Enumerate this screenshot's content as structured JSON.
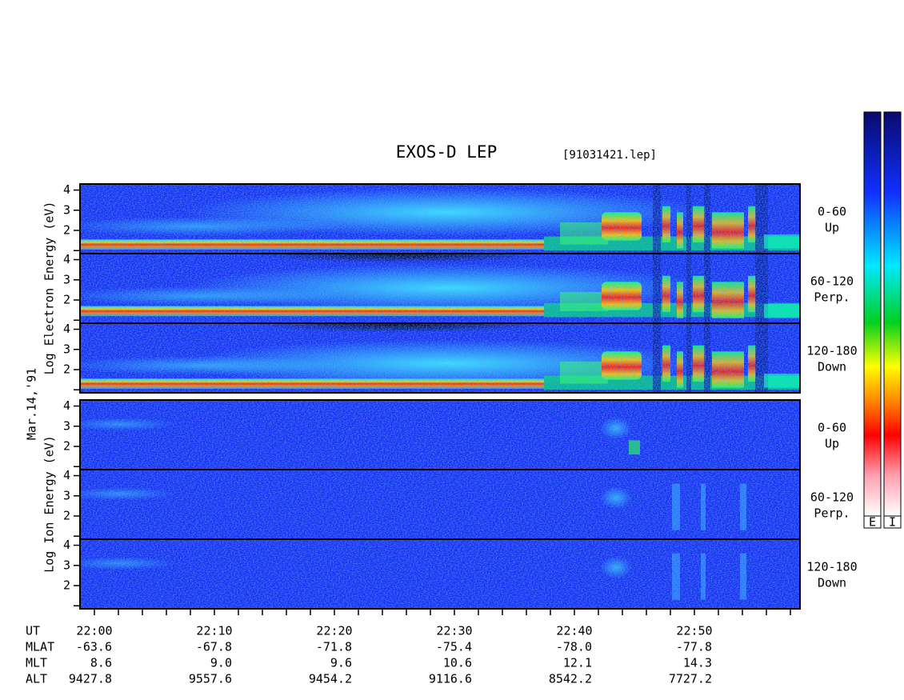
{
  "chart_data": {
    "type": "spectrogram",
    "title": "EXOS-D LEP",
    "subtitle": "[91031421.lep]",
    "date": "Mar.14,'91",
    "groups": [
      {
        "label": "Log  Electron  Energy (eV)",
        "species": "electron"
      },
      {
        "label": "Log  Ion  Energy (eV)",
        "species": "ion"
      }
    ],
    "pitch": [
      {
        "range": "0-60",
        "dir": "Up"
      },
      {
        "range": "60-120",
        "dir": "Perp."
      },
      {
        "range": "120-180",
        "dir": "Down"
      }
    ],
    "ylim": [
      0.85,
      4.3
    ],
    "yticks": [
      {
        "value": 1,
        "label": null
      },
      2,
      3,
      4
    ],
    "x_title": "UT",
    "x_labels": [
      "22:00",
      "22:10",
      "22:20",
      "22:30",
      "22:40",
      "22:50"
    ],
    "ephemeris": [
      {
        "name": "MLAT",
        "values": [
          "-63.6",
          "-67.8",
          "-71.8",
          "-75.4",
          "-78.0",
          "-77.8"
        ]
      },
      {
        "name": "MLT",
        "values": [
          "8.6",
          "9.0",
          "9.6",
          "10.6",
          "12.1",
          "14.3"
        ]
      },
      {
        "name": "ALT",
        "values": [
          "9427.8",
          "9557.6",
          "9454.2",
          "9116.6",
          "8542.2",
          "7727.2"
        ]
      }
    ],
    "colorbars": [
      "E",
      "I"
    ]
  }
}
